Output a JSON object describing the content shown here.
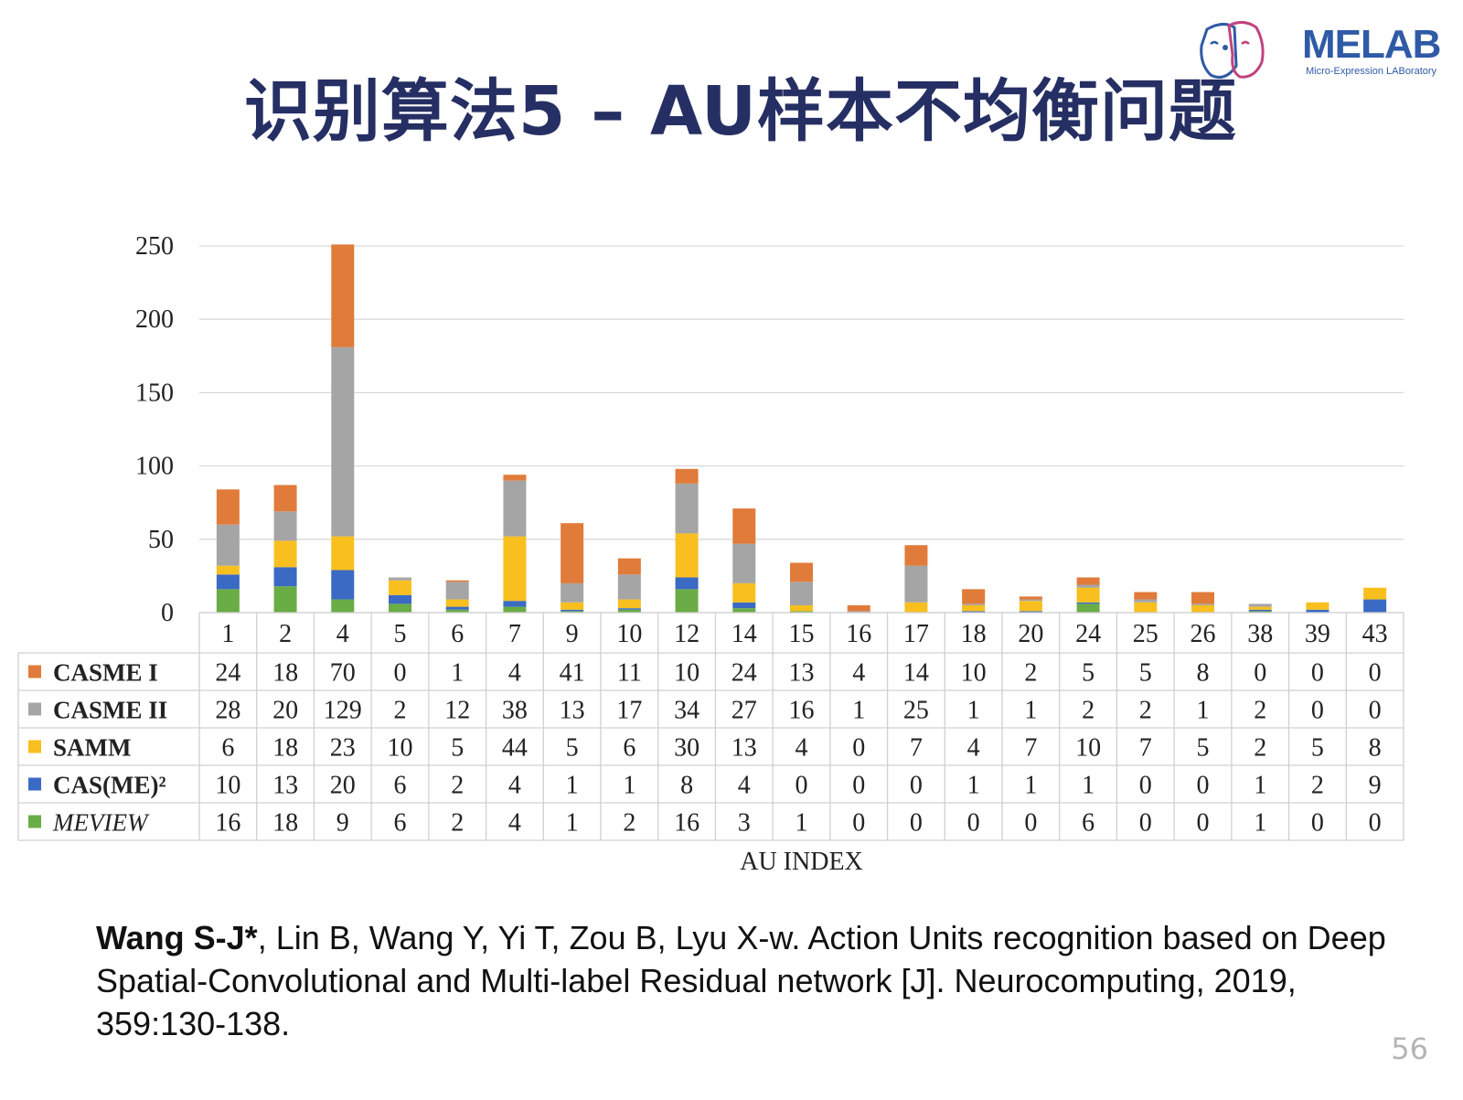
{
  "slide": {
    "title": "识别算法5 – AU样本不均衡问题",
    "page_number": "56"
  },
  "logo": {
    "brand": "MELAB",
    "subtitle": "Micro-Expression LABoratory",
    "icon": "two-faces-icon",
    "colors": {
      "blue": "#2f5aa6",
      "pink": "#c2447e"
    }
  },
  "citation": {
    "authors_bold": "Wang S-J*",
    "rest": ", Lin B, Wang Y, Yi T, Zou B, Lyu X-w. Action Units recognition based on Deep Spatial-Convolutional and Multi-label Residual network [J]. Neurocomputing, 2019, 359:130-138."
  },
  "chart_data": {
    "type": "bar",
    "stacked": true,
    "with_data_table": true,
    "xlabel": "AU INDEX",
    "ylabel": "",
    "ylim": [
      0,
      250
    ],
    "yticks": [
      0,
      50,
      100,
      150,
      200,
      250
    ],
    "grid": true,
    "categories": [
      "1",
      "2",
      "4",
      "5",
      "6",
      "7",
      "9",
      "10",
      "12",
      "14",
      "15",
      "16",
      "17",
      "18",
      "20",
      "24",
      "25",
      "26",
      "38",
      "39",
      "43"
    ],
    "series": [
      {
        "name": "CASME I",
        "color": "#e07b39",
        "values": [
          24,
          18,
          70,
          0,
          1,
          4,
          41,
          11,
          10,
          24,
          13,
          4,
          14,
          10,
          2,
          5,
          5,
          8,
          0,
          0,
          0
        ]
      },
      {
        "name": "CASME II",
        "color": "#a5a5a5",
        "values": [
          28,
          20,
          129,
          2,
          12,
          38,
          13,
          17,
          34,
          27,
          16,
          1,
          25,
          1,
          1,
          2,
          2,
          1,
          2,
          0,
          0
        ]
      },
      {
        "name": "SAMM",
        "color": "#f8bf1e",
        "values": [
          6,
          18,
          23,
          10,
          5,
          44,
          5,
          6,
          30,
          13,
          4,
          0,
          7,
          4,
          7,
          10,
          7,
          5,
          2,
          5,
          8
        ]
      },
      {
        "name": "CAS(ME)²",
        "color": "#3a6ac4",
        "values": [
          10,
          13,
          20,
          6,
          2,
          4,
          1,
          1,
          8,
          4,
          0,
          0,
          0,
          1,
          1,
          1,
          0,
          0,
          1,
          2,
          9
        ]
      },
      {
        "name": "MEVIEW",
        "color": "#6aac45",
        "values": [
          16,
          18,
          9,
          6,
          2,
          4,
          1,
          2,
          16,
          3,
          1,
          0,
          0,
          0,
          0,
          6,
          0,
          0,
          1,
          0,
          0
        ]
      }
    ],
    "stack_order_bottom_to_top": [
      "MEVIEW",
      "CAS(ME)²",
      "SAMM",
      "CASME II",
      "CASME I"
    ]
  }
}
